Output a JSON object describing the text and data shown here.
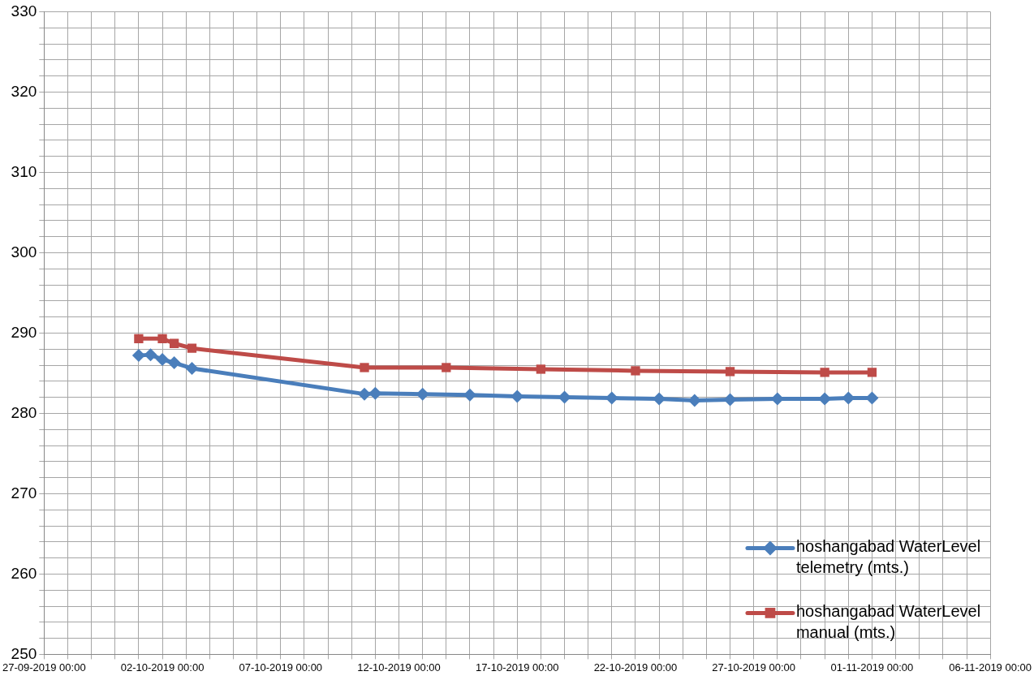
{
  "chart_data": {
    "type": "line",
    "legend": "bottom right",
    "grid": true,
    "xlim": [
      "2019-09-27",
      "2019-11-06"
    ],
    "xticks": [
      {
        "value": "2019-09-27",
        "label": "27-09-2019 00:00"
      },
      {
        "value": "2019-09-28",
        "label": null
      },
      {
        "value": "2019-09-29",
        "label": null
      },
      {
        "value": "2019-09-30",
        "label": null
      },
      {
        "value": "2019-10-01",
        "label": null
      },
      {
        "value": "2019-10-02",
        "label": "02-10-2019 00:00"
      },
      {
        "value": "2019-10-03",
        "label": null
      },
      {
        "value": "2019-10-04",
        "label": null
      },
      {
        "value": "2019-10-05",
        "label": null
      },
      {
        "value": "2019-10-06",
        "label": null
      },
      {
        "value": "2019-10-07",
        "label": "07-10-2019 00:00"
      },
      {
        "value": "2019-10-08",
        "label": null
      },
      {
        "value": "2019-10-09",
        "label": null
      },
      {
        "value": "2019-10-10",
        "label": null
      },
      {
        "value": "2019-10-11",
        "label": null
      },
      {
        "value": "2019-10-12",
        "label": "12-10-2019 00:00"
      },
      {
        "value": "2019-10-13",
        "label": null
      },
      {
        "value": "2019-10-14",
        "label": null
      },
      {
        "value": "2019-10-15",
        "label": null
      },
      {
        "value": "2019-10-16",
        "label": null
      },
      {
        "value": "2019-10-17",
        "label": "17-10-2019 00:00"
      },
      {
        "value": "2019-10-18",
        "label": null
      },
      {
        "value": "2019-10-19",
        "label": null
      },
      {
        "value": "2019-10-20",
        "label": null
      },
      {
        "value": "2019-10-21",
        "label": null
      },
      {
        "value": "2019-10-22",
        "label": "22-10-2019 00:00"
      },
      {
        "value": "2019-10-23",
        "label": null
      },
      {
        "value": "2019-10-24",
        "label": null
      },
      {
        "value": "2019-10-25",
        "label": null
      },
      {
        "value": "2019-10-26",
        "label": null
      },
      {
        "value": "2019-10-27",
        "label": "27-10-2019 00:00"
      },
      {
        "value": "2019-10-28",
        "label": null
      },
      {
        "value": "2019-10-29",
        "label": null
      },
      {
        "value": "2019-10-30",
        "label": null
      },
      {
        "value": "2019-10-31",
        "label": null
      },
      {
        "value": "2019-11-01",
        "label": "01-11-2019 00:00"
      },
      {
        "value": "2019-11-02",
        "label": null
      },
      {
        "value": "2019-11-03",
        "label": null
      },
      {
        "value": "2019-11-04",
        "label": null
      },
      {
        "value": "2019-11-05",
        "label": null
      },
      {
        "value": "2019-11-06",
        "label": "06-11-2019 00:00"
      }
    ],
    "ylim": [
      250,
      330
    ],
    "yticks": [
      250,
      {
        "value": 252,
        "label": null
      },
      {
        "value": 254,
        "label": null
      },
      {
        "value": 256,
        "label": null
      },
      {
        "value": 258,
        "label": null
      },
      260,
      {
        "value": 262,
        "label": null
      },
      {
        "value": 264,
        "label": null
      },
      {
        "value": 266,
        "label": null
      },
      {
        "value": 268,
        "label": null
      },
      270,
      {
        "value": 272,
        "label": null
      },
      {
        "value": 274,
        "label": null
      },
      {
        "value": 276,
        "label": null
      },
      {
        "value": 278,
        "label": null
      },
      280,
      {
        "value": 282,
        "label": null
      },
      {
        "value": 284,
        "label": null
      },
      {
        "value": 286,
        "label": null
      },
      {
        "value": 288,
        "label": null
      },
      290,
      {
        "value": 292,
        "label": null
      },
      {
        "value": 294,
        "label": null
      },
      {
        "value": 296,
        "label": null
      },
      {
        "value": 298,
        "label": null
      },
      300,
      {
        "value": 302,
        "label": null
      },
      {
        "value": 304,
        "label": null
      },
      {
        "value": 306,
        "label": null
      },
      {
        "value": 308,
        "label": null
      },
      310,
      {
        "value": 312,
        "label": null
      },
      {
        "value": 314,
        "label": null
      },
      {
        "value": 316,
        "label": null
      },
      {
        "value": 318,
        "label": null
      },
      320,
      {
        "value": 322,
        "label": null
      },
      {
        "value": 324,
        "label": null
      },
      {
        "value": 326,
        "label": null
      },
      {
        "value": 328,
        "label": null
      },
      330
    ],
    "series": [
      {
        "name": "hoshangabad WaterLevel telemetry (mts.)",
        "color": "#4a7ebb",
        "marker": "diamond",
        "x": [
          "2019-10-01T00:00",
          "2019-10-01T12:00",
          "2019-10-02T00:00",
          "2019-10-02T12:00",
          "2019-10-03T06:00",
          "2019-10-10T13:00",
          "2019-10-11",
          "2019-10-13",
          "2019-10-15",
          "2019-10-17",
          "2019-10-19",
          "2019-10-21",
          "2019-10-23",
          "2019-10-24T12:00",
          "2019-10-26",
          "2019-10-28",
          "2019-10-30",
          "2019-10-31",
          "2019-11-01"
        ],
        "values": [
          287.2,
          287.3,
          286.7,
          286.3,
          285.6,
          282.4,
          282.5,
          282.4,
          282.3,
          282.1,
          282.0,
          281.9,
          281.8,
          281.6,
          281.7,
          281.8,
          281.8,
          281.9,
          281.9
        ]
      },
      {
        "name": "hoshangabad WaterLevel manual (mts.)",
        "color": "#be4b48",
        "marker": "square",
        "x": [
          "2019-10-01T00:00",
          "2019-10-02T00:00",
          "2019-10-02T12:00",
          "2019-10-03T06:00",
          "2019-10-10T13:00",
          "2019-10-14",
          "2019-10-18",
          "2019-10-22",
          "2019-10-26",
          "2019-10-30",
          "2019-11-01"
        ],
        "values": [
          289.3,
          289.3,
          288.7,
          288.1,
          285.7,
          285.7,
          285.5,
          285.3,
          285.2,
          285.1,
          285.1
        ]
      }
    ]
  }
}
